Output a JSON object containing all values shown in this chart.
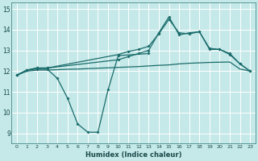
{
  "xlabel": "Humidex (Indice chaleur)",
  "background_color": "#c5e8e8",
  "grid_color": "#e0f0f0",
  "line_color": "#1a6b6b",
  "xlim": [
    -0.5,
    23.5
  ],
  "ylim": [
    8.5,
    15.3
  ],
  "x_all": [
    0,
    1,
    2,
    3,
    4,
    5,
    6,
    7,
    8,
    9,
    10,
    11,
    12,
    13,
    14,
    15,
    16,
    17,
    18,
    19,
    20,
    21,
    22,
    23
  ],
  "line1_x": [
    0,
    1,
    2,
    3,
    4,
    5,
    6,
    7,
    8,
    9,
    10,
    13
  ],
  "line1_y": [
    11.8,
    12.05,
    12.1,
    12.1,
    11.65,
    10.7,
    9.45,
    9.05,
    9.05,
    11.1,
    12.75,
    12.85
  ],
  "line2_y": [
    11.8,
    12.0,
    12.05,
    12.05,
    12.07,
    12.09,
    12.1,
    12.12,
    12.14,
    12.16,
    12.18,
    12.2,
    12.22,
    12.25,
    12.28,
    12.3,
    12.35,
    12.38,
    12.4,
    12.42,
    12.43,
    12.44,
    12.1,
    12.0
  ],
  "line3_x": [
    0,
    1,
    2,
    3,
    10,
    11,
    12,
    13,
    14,
    15,
    16,
    17,
    18,
    19,
    20,
    21,
    22,
    23
  ],
  "line3_y": [
    11.8,
    12.05,
    12.15,
    12.15,
    12.55,
    12.7,
    12.85,
    13.0,
    13.85,
    14.62,
    13.75,
    13.85,
    13.9,
    13.05,
    13.05,
    12.8,
    12.35,
    12.0
  ],
  "line4_x": [
    0,
    1,
    2,
    3,
    10,
    11,
    12,
    13,
    14,
    15,
    16,
    17,
    18,
    19,
    20,
    21,
    22,
    23
  ],
  "line4_y": [
    11.8,
    12.05,
    12.15,
    12.15,
    12.8,
    12.95,
    13.05,
    13.2,
    13.8,
    14.5,
    13.85,
    13.8,
    13.9,
    13.1,
    13.05,
    12.85,
    12.35,
    12.0
  ],
  "xticks": [
    0,
    1,
    2,
    3,
    4,
    5,
    6,
    7,
    8,
    9,
    10,
    11,
    12,
    13,
    14,
    15,
    16,
    17,
    18,
    19,
    20,
    21,
    22,
    23
  ],
  "yticks": [
    9,
    10,
    11,
    12,
    13,
    14,
    15
  ]
}
